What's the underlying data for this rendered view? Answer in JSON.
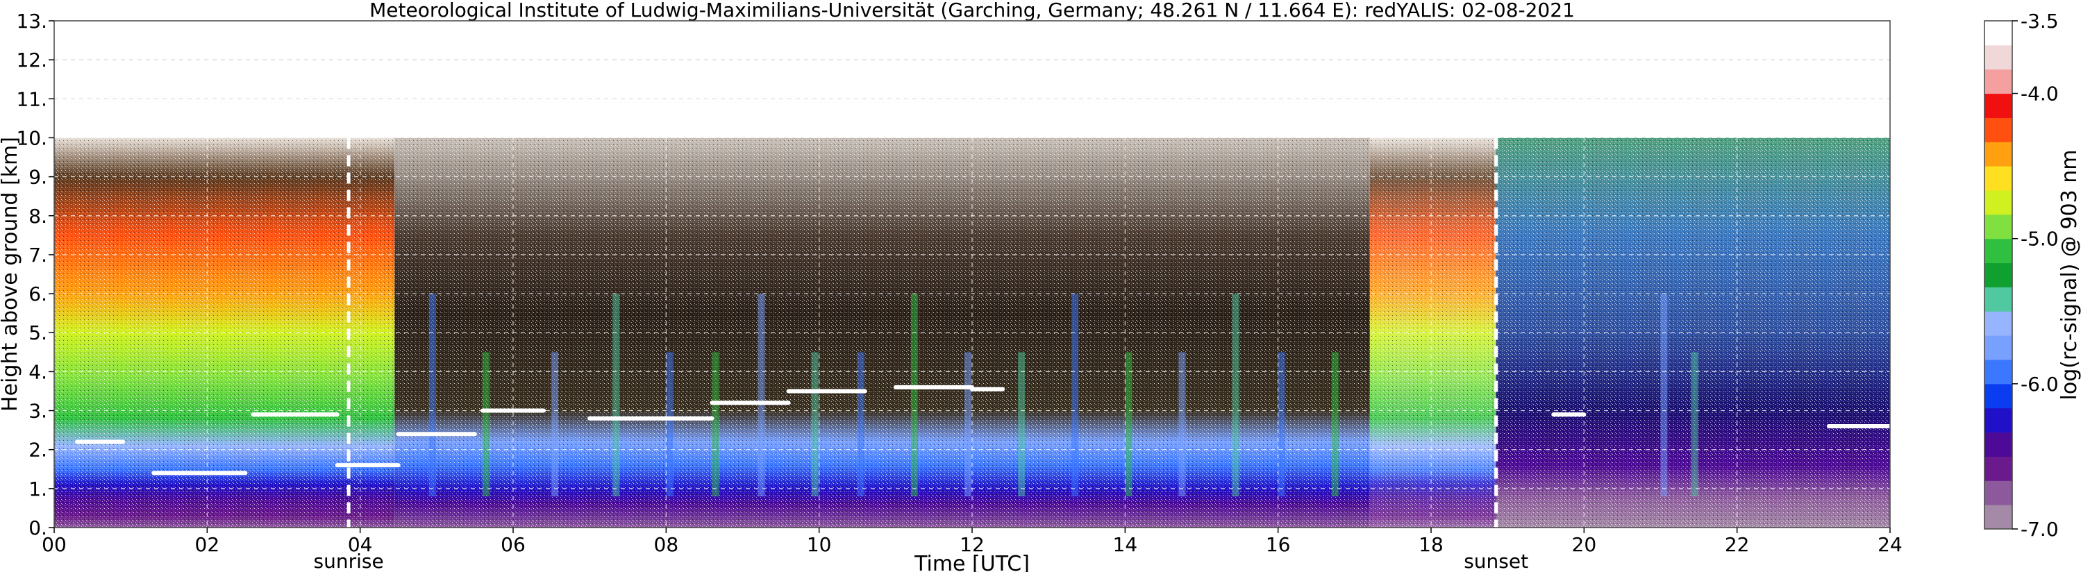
{
  "chart_data": {
    "type": "heatmap",
    "title": "Meteorological Institute of Ludwig-Maximilians-Universität (Garching, Germany; 48.261 N / 11.664 E):    redYALIS: 02-08-2021",
    "xlabel": "Time [UTC]",
    "ylabel": "Height above ground [km]",
    "xlim": [
      0,
      24
    ],
    "ylim": [
      0,
      13
    ],
    "x_ticks": [
      0,
      2,
      4,
      6,
      8,
      10,
      12,
      14,
      16,
      18,
      20,
      22,
      24
    ],
    "x_tick_labels": [
      "00",
      "02",
      "04",
      "06",
      "08",
      "10",
      "12",
      "14",
      "16",
      "18",
      "20",
      "22",
      "24"
    ],
    "y_ticks": [
      0,
      1,
      2,
      3,
      4,
      5,
      6,
      7,
      8,
      9,
      10,
      11,
      12,
      13
    ],
    "y_tick_labels": [
      "0.",
      "1.",
      "2.",
      "3.",
      "4.",
      "5.",
      "6.",
      "7.",
      "8.",
      "9.",
      "10.",
      "11.",
      "12.",
      "13."
    ],
    "data_top_km": 10,
    "grid": true,
    "markers": [
      {
        "label": "sunrise",
        "x": 3.85
      },
      {
        "label": "sunset",
        "x": 18.85
      }
    ],
    "colorbar": {
      "label": "log(rc-signal) @ 903 nm",
      "range": [
        -7.0,
        -3.5
      ],
      "ticks": [
        -3.5,
        -4.0,
        -5.0,
        -6.0,
        -7.0
      ],
      "tick_labels": [
        "-3.5",
        "-4.0",
        "-5.0",
        "-6.0",
        "-7.0"
      ],
      "colors": [
        "#a48aa6",
        "#8c5a9c",
        "#6a1a8c",
        "#4c0a96",
        "#2010c8",
        "#0a3cf0",
        "#3c78ff",
        "#78a0ff",
        "#96b4ff",
        "#50c8a0",
        "#10a030",
        "#30c040",
        "#80e040",
        "#d0f020",
        "#ffe020",
        "#ffa010",
        "#ff5010",
        "#f01010",
        "#f4a0a0",
        "#f0d8d8",
        "#ffffff"
      ]
    },
    "cloud_layers": [
      {
        "x": [
          0.3,
          0.9
        ],
        "y": 2.2
      },
      {
        "x": [
          1.3,
          2.5
        ],
        "y": 1.4
      },
      {
        "x": [
          2.6,
          3.7
        ],
        "y": 2.9
      },
      {
        "x": [
          3.7,
          4.5
        ],
        "y": 1.6
      },
      {
        "x": [
          4.5,
          5.5
        ],
        "y": 2.4
      },
      {
        "x": [
          5.6,
          6.4
        ],
        "y": 3.0
      },
      {
        "x": [
          7.0,
          8.6
        ],
        "y": 2.8
      },
      {
        "x": [
          8.6,
          9.6
        ],
        "y": 3.2
      },
      {
        "x": [
          9.6,
          10.6
        ],
        "y": 3.5
      },
      {
        "x": [
          11.0,
          12.0
        ],
        "y": 3.6
      },
      {
        "x": [
          12.0,
          12.4
        ],
        "y": 3.55
      },
      {
        "x": [
          19.6,
          20.0
        ],
        "y": 2.9
      },
      {
        "x": [
          23.2,
          24.0
        ],
        "y": 2.6
      }
    ]
  }
}
